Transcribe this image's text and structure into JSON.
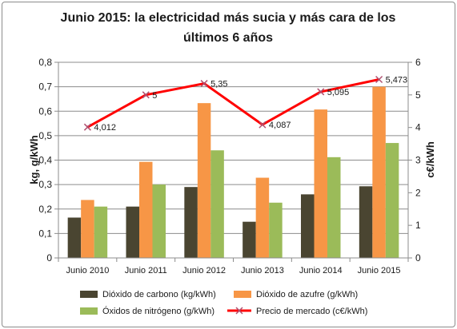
{
  "chart_data": {
    "type": "bar",
    "title_lines": [
      "Junio 2015: la electricidad más sucia y más cara de los",
      "últimos 6 años"
    ],
    "categories": [
      "Junio 2010",
      "Junio 2011",
      "Junio 2012",
      "Junio 2013",
      "Junio 2014",
      "Junio 2015"
    ],
    "ylabel_left": "kg, g/kWh",
    "ylabel_right": "c€/kWh",
    "ylim_left": [
      0,
      0.8
    ],
    "ylim_right": [
      0,
      6
    ],
    "yticks_left": [
      "0",
      "0,1",
      "0,2",
      "0,3",
      "0,4",
      "0,5",
      "0,6",
      "0,7",
      "0,8"
    ],
    "yticks_right": [
      "0",
      "1",
      "2",
      "3",
      "4",
      "5",
      "6"
    ],
    "grid": true,
    "legend_position": "bottom",
    "series": [
      {
        "name": "Dióxido de carbono (kg/kWh)",
        "type": "bar",
        "axis": "left",
        "color": "#4a4531",
        "values": [
          0.165,
          0.21,
          0.29,
          0.148,
          0.26,
          0.293
        ]
      },
      {
        "name": "Dióxido de azufre (g/kWh)",
        "type": "bar",
        "axis": "left",
        "color": "#f79646",
        "values": [
          0.237,
          0.393,
          0.633,
          0.328,
          0.607,
          0.7
        ]
      },
      {
        "name": "Óxidos de nitrógeno (g/kWh)",
        "type": "bar",
        "axis": "left",
        "color": "#9bbb59",
        "values": [
          0.21,
          0.3,
          0.44,
          0.226,
          0.412,
          0.47
        ]
      },
      {
        "name": "Precio de mercado (c€/kWh)",
        "type": "line",
        "axis": "right",
        "color": "#ff0000",
        "marker_color": "#b05070",
        "values": [
          4.012,
          5,
          5.35,
          4.087,
          5.095,
          5.473
        ],
        "labels": [
          "4,012",
          "5",
          "5,35",
          "4,087",
          "5,095",
          "5,473"
        ]
      }
    ]
  }
}
